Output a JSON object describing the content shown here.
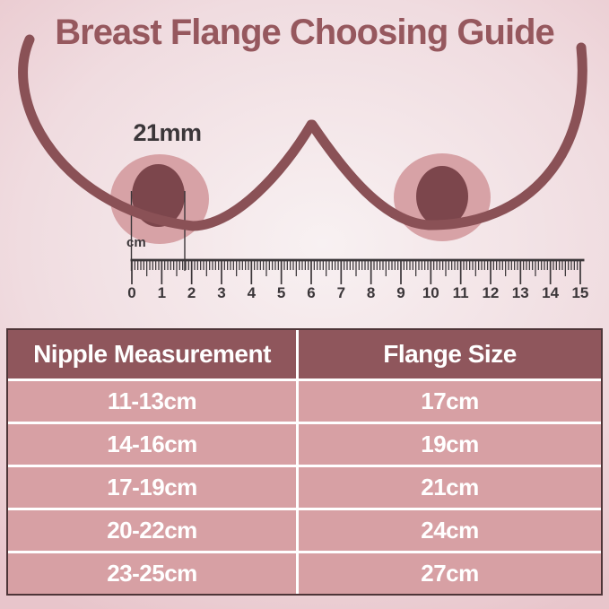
{
  "title": "Breast Flange Choosing Guide",
  "illustration": {
    "nipple_width_label": "21mm",
    "ruler_unit": "cm",
    "ruler_ticks": [
      "0",
      "1",
      "2",
      "3",
      "4",
      "5",
      "6",
      "7",
      "8",
      "9",
      "10",
      "11",
      "12",
      "13",
      "14",
      "15"
    ]
  },
  "table": {
    "headers": [
      "Nipple Measurement",
      "Flange Size"
    ],
    "rows": [
      [
        "11-13cm",
        "17cm"
      ],
      [
        "14-16cm",
        "19cm"
      ],
      [
        "17-19cm",
        "21cm"
      ],
      [
        "20-22cm",
        "24cm"
      ],
      [
        "23-25cm",
        "27cm"
      ]
    ]
  },
  "colors": {
    "title_ink": "#96585e",
    "breast_outline": "#8a5156",
    "areola": "#d7a2a6",
    "nipple": "#7c464c",
    "ruler_ink": "#3b3639",
    "header_bg": "#8f565c",
    "row_bg": "#d7a0a4",
    "cell_text": "#ffffff",
    "table_border": "#4e3538",
    "separator": "#ffffff",
    "bg_center": "#f8f1f2",
    "bg_mid": "#f0dce0",
    "bg_edge": "#e8c5cb"
  }
}
